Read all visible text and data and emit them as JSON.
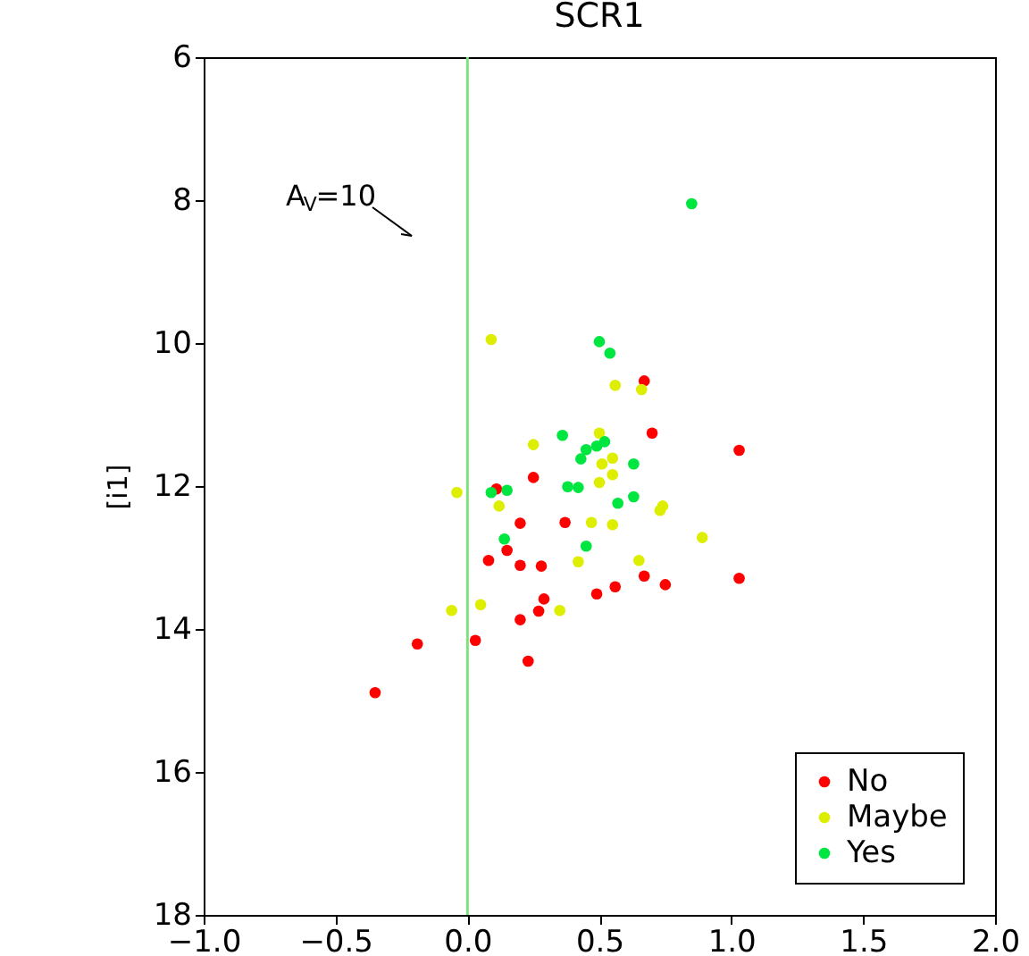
{
  "chart_data": {
    "type": "scatter",
    "title": "SCR1",
    "ylabel": "[i1]",
    "xlim": [
      -1.0,
      2.0
    ],
    "xticks": [
      {
        "value": -1.0,
        "label": "−1.0"
      },
      {
        "value": -0.5,
        "label": "−0.5"
      },
      {
        "value": 0,
        "label": "0.0"
      },
      {
        "value": 0.5,
        "label": "0.5"
      },
      {
        "value": 1.0,
        "label": "1.0"
      },
      {
        "value": 1.5,
        "label": "1.5"
      },
      {
        "value": 2.0,
        "label": "2.0"
      }
    ],
    "ylim": [
      18,
      6
    ],
    "yticks": [
      6,
      8,
      10,
      12,
      14,
      16,
      18
    ],
    "grid": false,
    "legend": "bottom right",
    "marker": "circle",
    "ref_lines": [
      {
        "axis": "x",
        "value": 0,
        "color": "#80e080"
      }
    ],
    "annotations": [
      "A$_{V}$=10"
    ],
    "series": [
      {
        "name": "No",
        "color": "#ff0000",
        "x": [
          0.67,
          0.7,
          1.03,
          0.25,
          0.11,
          0.2,
          0.37,
          0.15,
          0.08,
          0.2,
          0.28,
          0.67,
          0.56,
          0.49,
          0.75,
          1.03,
          0.29,
          0.27,
          0.2,
          0.03,
          -0.19,
          0.23,
          -0.35
        ],
        "values": [
          10.53,
          11.26,
          11.5,
          11.88,
          12.04,
          12.52,
          12.51,
          12.9,
          13.04,
          13.11,
          13.12,
          13.26,
          13.41,
          13.51,
          13.38,
          13.29,
          13.58,
          13.75,
          13.87,
          14.16,
          14.21,
          14.45,
          14.89
        ]
      },
      {
        "name": "Maybe",
        "color": "#ddee00",
        "x": [
          0.09,
          0.56,
          0.66,
          0.25,
          0.5,
          0.55,
          0.51,
          0.55,
          0.5,
          -0.04,
          0.74,
          0.73,
          0.12,
          0.47,
          0.55,
          0.89,
          0.42,
          0.65,
          0.35,
          0.05,
          -0.06
        ],
        "values": [
          9.95,
          10.59,
          10.65,
          11.42,
          11.26,
          11.61,
          11.69,
          11.84,
          11.95,
          12.09,
          12.28,
          12.34,
          12.28,
          12.51,
          12.54,
          12.72,
          13.06,
          13.04,
          13.74,
          13.66,
          13.74
        ]
      },
      {
        "name": "Yes",
        "color": "#00e640",
        "x": [
          0.85,
          0.5,
          0.54,
          0.36,
          0.45,
          0.49,
          0.52,
          0.43,
          0.63,
          0.09,
          0.15,
          0.38,
          0.42,
          0.57,
          0.63,
          0.14,
          0.45
        ],
        "values": [
          8.05,
          9.98,
          10.14,
          11.29,
          11.49,
          11.44,
          11.38,
          11.62,
          11.69,
          12.09,
          12.06,
          12.01,
          12.02,
          12.24,
          12.15,
          12.74,
          12.84
        ]
      }
    ]
  }
}
